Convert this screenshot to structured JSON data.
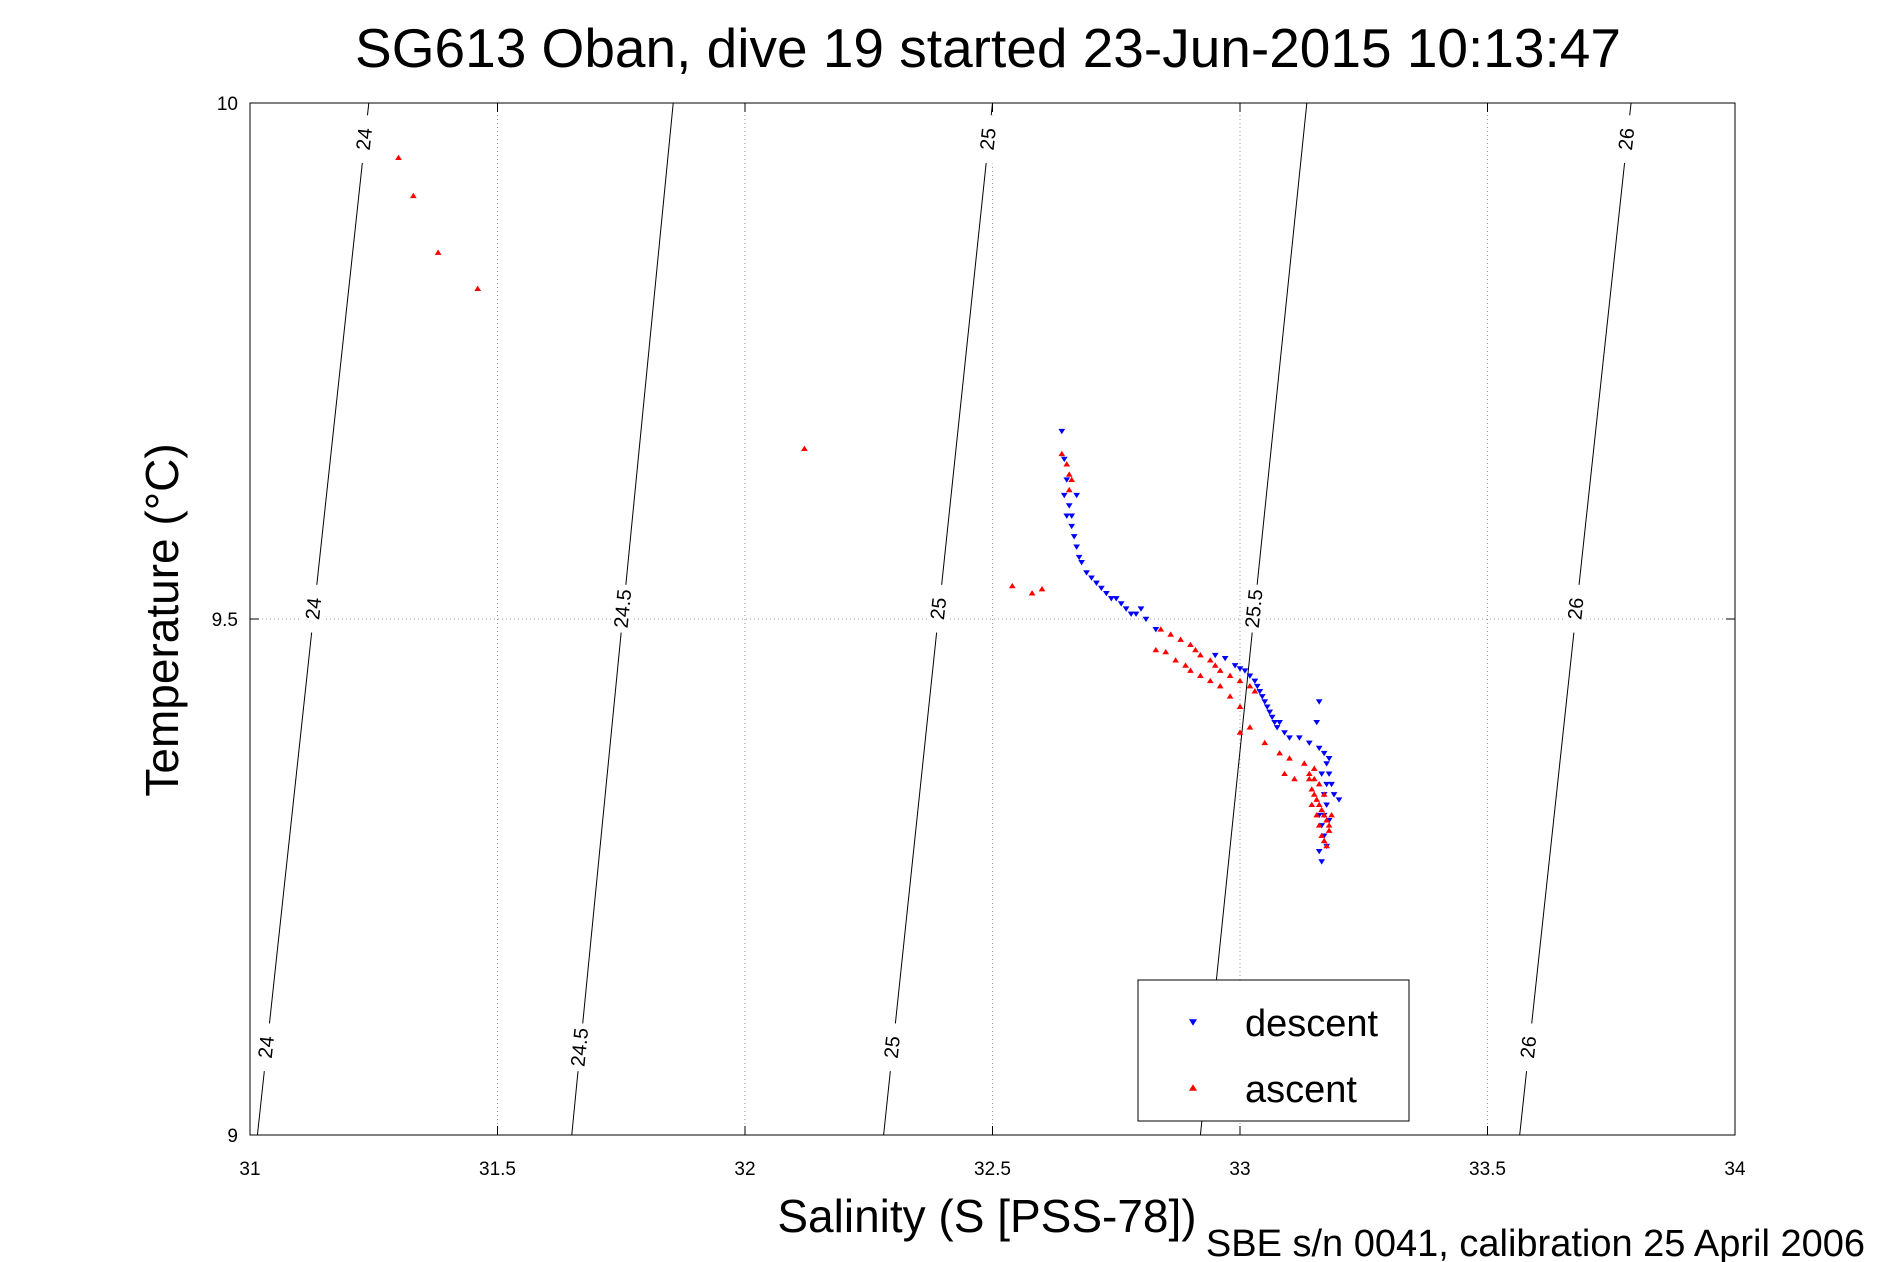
{
  "chart_data": {
    "type": "scatter",
    "title": "SG613 Oban, dive 19 started 23-Jun-2015 10:13:47",
    "xlabel": "Salinity (S [PSS-78])",
    "ylabel": "Temperature (°C)",
    "footer": "SBE s/n 0041, calibration 25 April 2006",
    "xlim": [
      31,
      34
    ],
    "ylim": [
      9,
      10
    ],
    "xticks": [
      31,
      31.5,
      32,
      32.5,
      33,
      33.5,
      34
    ],
    "xtick_labels": [
      "31",
      "31.5",
      "32",
      "32.5",
      "33",
      "33.5",
      "34"
    ],
    "yticks": [
      9,
      9.5,
      10
    ],
    "ytick_labels": [
      "9",
      "9.5",
      "10"
    ],
    "grid": true,
    "legend": {
      "placement": "bottom-right"
    },
    "series": [
      {
        "name": "descent",
        "color": "#0000ff",
        "marker": "triangle-down",
        "points": [
          [
            32.64,
            9.682
          ],
          [
            32.645,
            9.655
          ],
          [
            32.65,
            9.635
          ],
          [
            32.645,
            9.62
          ],
          [
            32.655,
            9.61
          ],
          [
            32.65,
            9.6
          ],
          [
            32.66,
            9.6
          ],
          [
            32.67,
            9.62
          ],
          [
            32.66,
            9.59
          ],
          [
            32.665,
            9.58
          ],
          [
            32.67,
            9.57
          ],
          [
            32.675,
            9.56
          ],
          [
            32.68,
            9.555
          ],
          [
            32.69,
            9.545
          ],
          [
            32.7,
            9.54
          ],
          [
            32.71,
            9.535
          ],
          [
            32.72,
            9.53
          ],
          [
            32.73,
            9.525
          ],
          [
            32.74,
            9.52
          ],
          [
            32.75,
            9.52
          ],
          [
            32.76,
            9.515
          ],
          [
            32.77,
            9.51
          ],
          [
            32.78,
            9.505
          ],
          [
            32.79,
            9.505
          ],
          [
            32.8,
            9.51
          ],
          [
            32.81,
            9.5
          ],
          [
            32.83,
            9.49
          ],
          [
            32.95,
            9.465
          ],
          [
            32.97,
            9.462
          ],
          [
            32.99,
            9.455
          ],
          [
            33.0,
            9.452
          ],
          [
            33.01,
            9.45
          ],
          [
            33.02,
            9.445
          ],
          [
            33.03,
            9.44
          ],
          [
            33.035,
            9.435
          ],
          [
            33.04,
            9.43
          ],
          [
            33.045,
            9.425
          ],
          [
            33.05,
            9.42
          ],
          [
            33.055,
            9.415
          ],
          [
            33.06,
            9.41
          ],
          [
            33.065,
            9.405
          ],
          [
            33.07,
            9.4
          ],
          [
            33.075,
            9.395
          ],
          [
            33.08,
            9.4
          ],
          [
            33.09,
            9.39
          ],
          [
            33.1,
            9.385
          ],
          [
            33.12,
            9.385
          ],
          [
            33.14,
            9.38
          ],
          [
            33.16,
            9.375
          ],
          [
            33.17,
            9.37
          ],
          [
            33.175,
            9.36
          ],
          [
            33.18,
            9.35
          ],
          [
            33.185,
            9.34
          ],
          [
            33.19,
            9.33
          ],
          [
            33.2,
            9.325
          ],
          [
            33.165,
            9.35
          ],
          [
            33.17,
            9.33
          ],
          [
            33.175,
            9.32
          ],
          [
            33.165,
            9.3
          ],
          [
            33.16,
            9.31
          ],
          [
            33.17,
            9.29
          ],
          [
            33.175,
            9.28
          ],
          [
            33.165,
            9.265
          ],
          [
            33.16,
            9.42
          ],
          [
            33.155,
            9.4
          ],
          [
            33.18,
            9.365
          ],
          [
            33.17,
            9.31
          ],
          [
            33.18,
            9.305
          ],
          [
            33.175,
            9.34
          ],
          [
            33.16,
            9.275
          ]
        ]
      },
      {
        "name": "ascent",
        "color": "#ff0000",
        "marker": "triangle-up",
        "points": [
          [
            31.3,
            9.947
          ],
          [
            31.33,
            9.91
          ],
          [
            31.38,
            9.855
          ],
          [
            31.46,
            9.82
          ],
          [
            32.12,
            9.665
          ],
          [
            32.54,
            9.532
          ],
          [
            32.58,
            9.525
          ],
          [
            32.6,
            9.529
          ],
          [
            32.64,
            9.66
          ],
          [
            32.65,
            9.65
          ],
          [
            32.655,
            9.64
          ],
          [
            32.66,
            9.635
          ],
          [
            32.655,
            9.625
          ],
          [
            32.84,
            9.49
          ],
          [
            32.86,
            9.485
          ],
          [
            32.88,
            9.48
          ],
          [
            32.9,
            9.475
          ],
          [
            32.91,
            9.47
          ],
          [
            32.92,
            9.465
          ],
          [
            32.94,
            9.46
          ],
          [
            32.95,
            9.455
          ],
          [
            32.96,
            9.45
          ],
          [
            32.98,
            9.445
          ],
          [
            33.0,
            9.44
          ],
          [
            33.02,
            9.435
          ],
          [
            33.03,
            9.43
          ],
          [
            32.83,
            9.47
          ],
          [
            32.85,
            9.468
          ],
          [
            32.87,
            9.46
          ],
          [
            32.89,
            9.455
          ],
          [
            32.9,
            9.45
          ],
          [
            32.92,
            9.445
          ],
          [
            32.94,
            9.44
          ],
          [
            32.96,
            9.435
          ],
          [
            32.98,
            9.425
          ],
          [
            33.0,
            9.415
          ],
          [
            33.0,
            9.39
          ],
          [
            33.02,
            9.395
          ],
          [
            33.05,
            9.38
          ],
          [
            33.08,
            9.37
          ],
          [
            33.1,
            9.365
          ],
          [
            33.09,
            9.35
          ],
          [
            33.11,
            9.345
          ],
          [
            33.13,
            9.36
          ],
          [
            33.14,
            9.35
          ],
          [
            33.15,
            9.345
          ],
          [
            33.145,
            9.335
          ],
          [
            33.15,
            9.33
          ],
          [
            33.155,
            9.325
          ],
          [
            33.16,
            9.32
          ],
          [
            33.165,
            9.315
          ],
          [
            33.17,
            9.31
          ],
          [
            33.175,
            9.305
          ],
          [
            33.18,
            9.3
          ],
          [
            33.16,
            9.34
          ],
          [
            33.15,
            9.355
          ],
          [
            33.14,
            9.345
          ],
          [
            33.145,
            9.32
          ],
          [
            33.155,
            9.31
          ],
          [
            33.16,
            9.3
          ],
          [
            33.165,
            9.29
          ],
          [
            33.17,
            9.285
          ],
          [
            33.175,
            9.28
          ],
          [
            33.18,
            9.295
          ],
          [
            33.17,
            9.33
          ],
          [
            33.185,
            9.31
          ]
        ]
      }
    ],
    "density_contours": [
      {
        "label": "24",
        "x_at_ymin": 31.015,
        "x_at_ymax": 31.24,
        "label_ys": [
          9.085,
          9.51,
          9.965
        ]
      },
      {
        "label": "24.5",
        "x_at_ymin": 31.65,
        "x_at_ymax": 31.855,
        "label_ys": [
          9.085,
          9.51
        ]
      },
      {
        "label": "25",
        "x_at_ymin": 32.28,
        "x_at_ymax": 32.5,
        "label_ys": [
          9.085,
          9.51,
          9.965
        ]
      },
      {
        "label": "25.5",
        "x_at_ymin": 32.92,
        "x_at_ymax": 33.135,
        "label_ys": [
          9.51
        ]
      },
      {
        "label": "26",
        "x_at_ymin": 33.565,
        "x_at_ymax": 33.79,
        "label_ys": [
          9.085,
          9.51,
          9.965
        ]
      }
    ]
  }
}
